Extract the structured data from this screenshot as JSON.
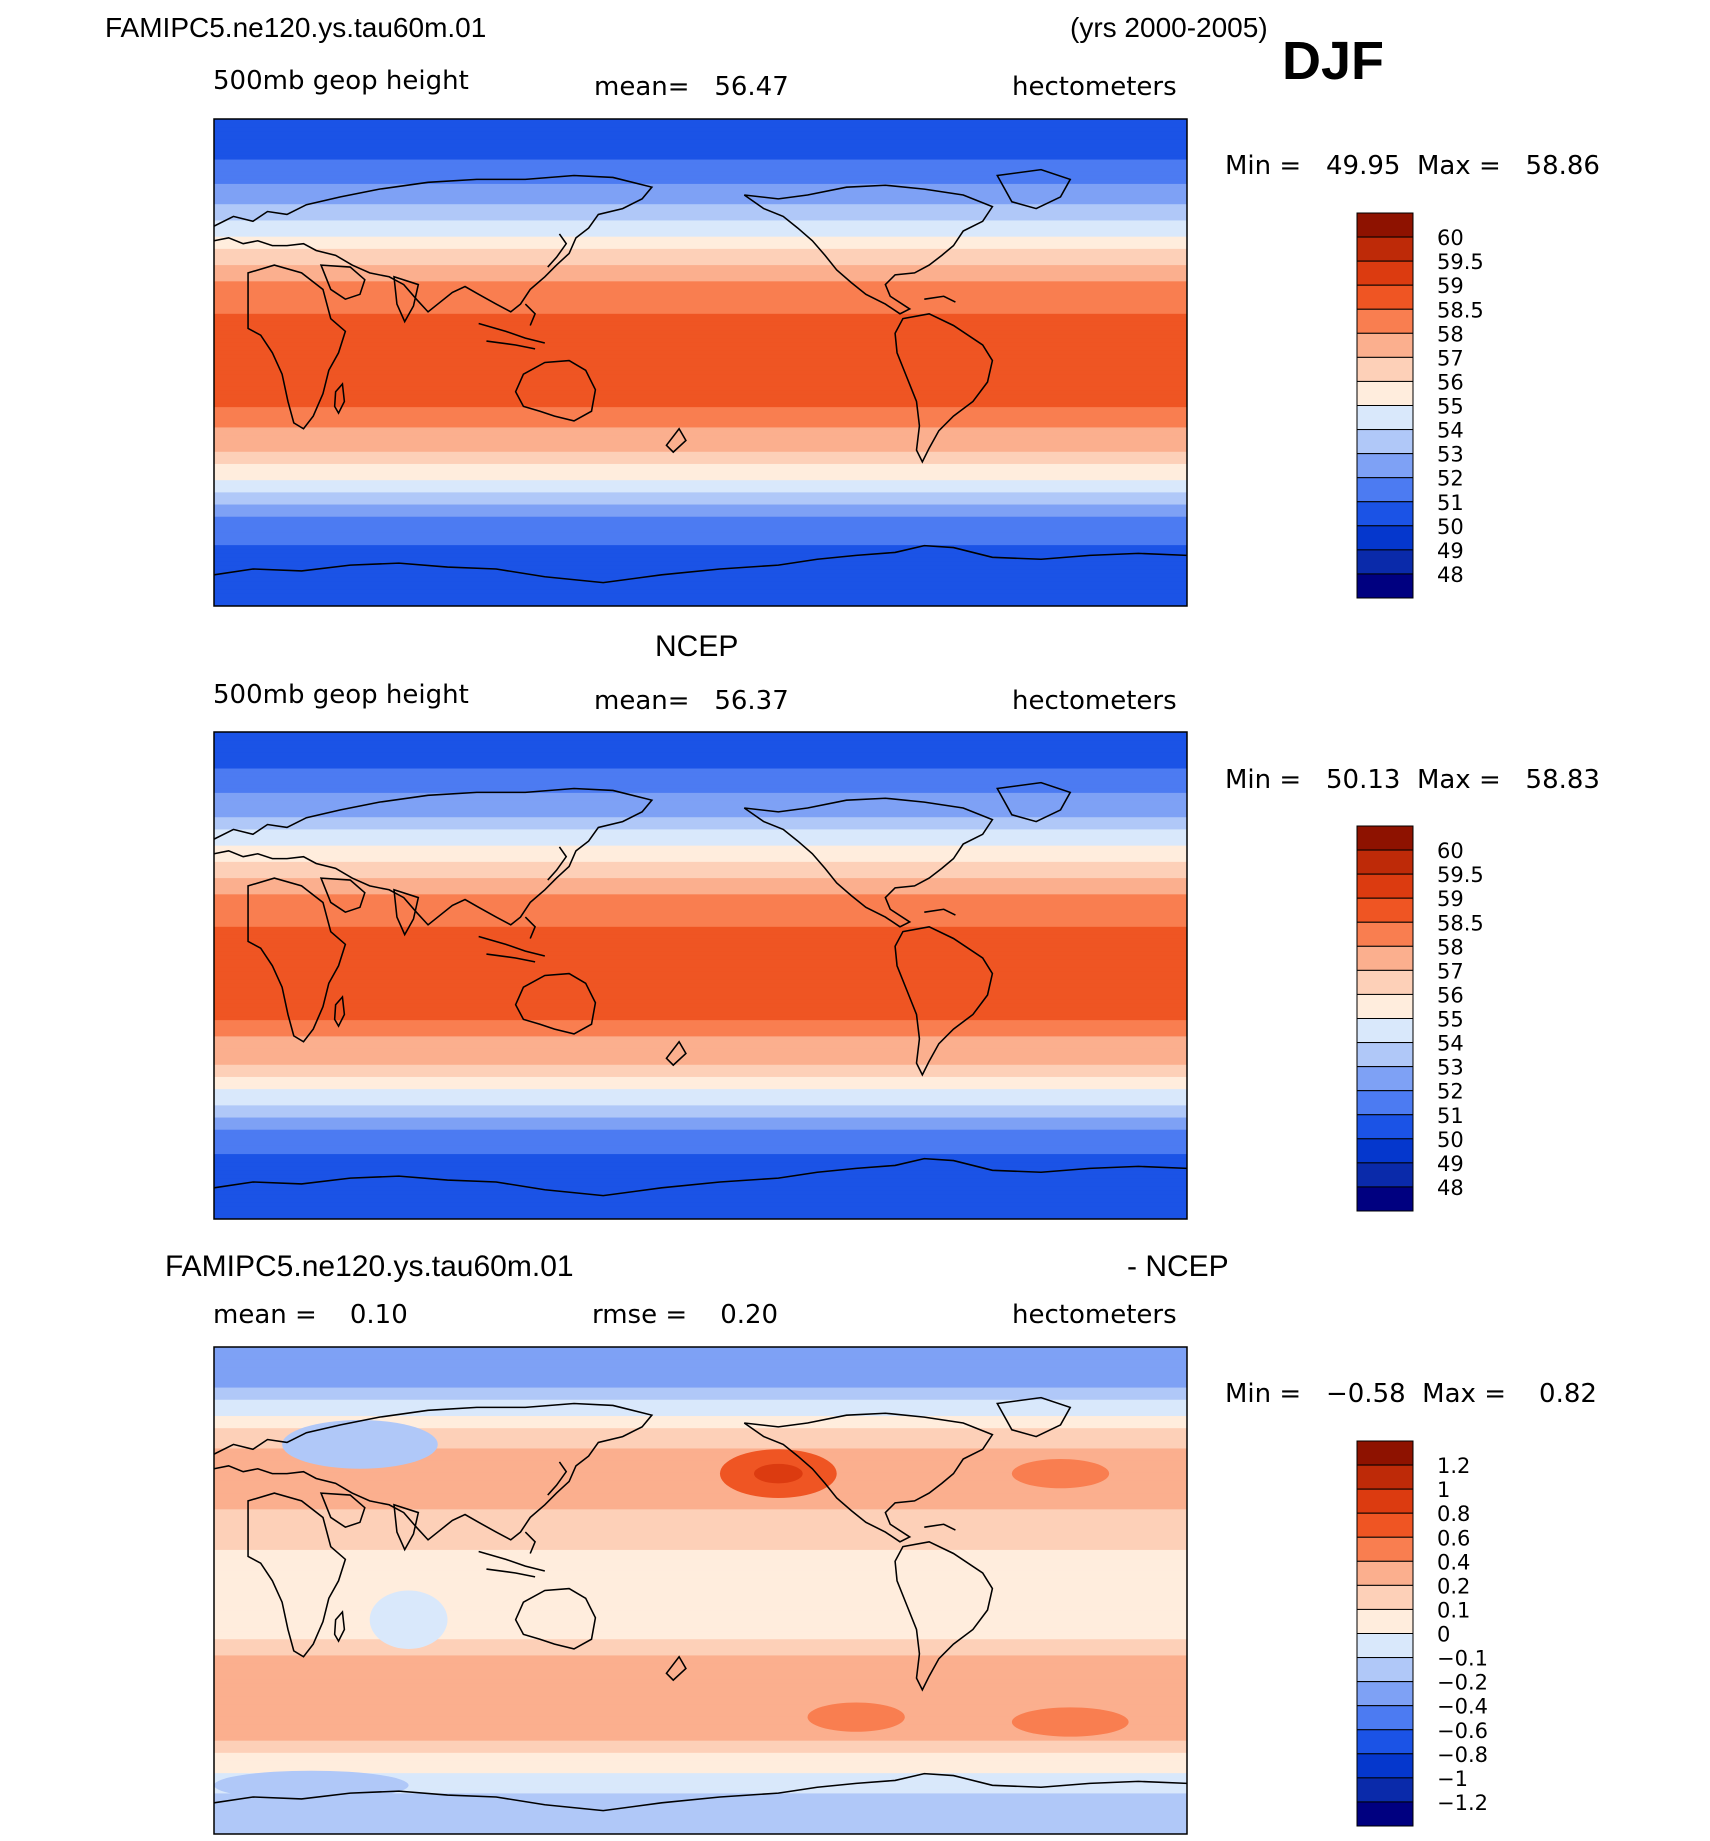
{
  "header": {
    "case_title": "FAMIPC5.ne120.ys.tau60m.01",
    "years": "(yrs 2000-2005)",
    "season": "DJF"
  },
  "colors": {
    "full_field": [
      "#000080",
      "#0A2AAA",
      "#0537CD",
      "#1B53E6",
      "#4C7BF2",
      "#7EA1F5",
      "#B0C8F8",
      "#D9E8FB",
      "#FFEDDD",
      "#FDD0B8",
      "#FBAF8E",
      "#F97E50",
      "#EF5523",
      "#DC3B10",
      "#BE2A08",
      "#8E1200"
    ],
    "difference": [
      "#000080",
      "#0A2AAA",
      "#0537CD",
      "#1B53E6",
      "#4C7BF2",
      "#7EA1F5",
      "#B0C8F8",
      "#D9E8FB",
      "#FFEDDD",
      "#FDD0B8",
      "#FBAF8E",
      "#F97E50",
      "#EF5523",
      "#DC3B10",
      "#BE2A08",
      "#8E1200"
    ]
  },
  "chart_data": [
    {
      "type": "heatmap",
      "name": "model",
      "title": "",
      "left_label": "500mb geop height",
      "center_label": "mean=   56.47",
      "right_label": "hectometers",
      "stats": "Min =   49.95  Max =   58.86",
      "levels": [
        "60",
        "59.5",
        "59",
        "58.5",
        "58",
        "57",
        "56",
        "55",
        "54",
        "53",
        "52",
        "51",
        "50",
        "49",
        "48"
      ],
      "projection": "cylindrical equidistant, centered 180",
      "zonal_profile": {
        "lat": [
          90,
          75,
          60,
          45,
          30,
          15,
          0,
          -15,
          -30,
          -45,
          -60,
          -75,
          -90
        ],
        "value": [
          50.2,
          51.0,
          52.6,
          55.4,
          58.0,
          58.6,
          58.7,
          58.6,
          57.6,
          54.6,
          51.4,
          50.6,
          50.3
        ]
      }
    },
    {
      "type": "heatmap",
      "name": "obs",
      "title": "NCEP",
      "left_label": "500mb geop height",
      "center_label": "mean=   56.37",
      "right_label": "hectometers",
      "stats": "Min =   50.13  Max =   58.83",
      "levels": [
        "60",
        "59.5",
        "59",
        "58.5",
        "58",
        "57",
        "56",
        "55",
        "54",
        "53",
        "52",
        "51",
        "50",
        "49",
        "48"
      ],
      "projection": "cylindrical equidistant, centered 180",
      "zonal_profile": {
        "lat": [
          90,
          75,
          60,
          45,
          30,
          15,
          0,
          -15,
          -30,
          -45,
          -60,
          -75,
          -90
        ],
        "value": [
          50.3,
          51.1,
          52.8,
          55.5,
          58.0,
          58.6,
          58.7,
          58.6,
          57.5,
          54.5,
          51.3,
          50.5,
          50.4
        ]
      }
    },
    {
      "type": "heatmap",
      "name": "difference",
      "title_left": "FAMIPC5.ne120.ys.tau60m.01",
      "title_right": "- NCEP",
      "left_label": "mean =    0.10",
      "center_label": "rmse =    0.20",
      "right_label": "hectometers",
      "stats": "Min =   −0.58  Max =    0.82",
      "levels": [
        "1.2",
        "1",
        "0.8",
        "0.6",
        "0.4",
        "0.2",
        "0.1",
        "0",
        "−0.1",
        "−0.2",
        "−0.4",
        "−0.6",
        "−0.8",
        "−1",
        "−1.2"
      ],
      "zonal_profile": {
        "lat": [
          90,
          75,
          60,
          45,
          30,
          15,
          0,
          -15,
          -30,
          -45,
          -60,
          -75,
          -90
        ],
        "value": [
          -0.3,
          -0.2,
          0.1,
          0.3,
          0.2,
          0.1,
          0.05,
          0.05,
          0.3,
          0.4,
          0.1,
          -0.1,
          -0.2
        ]
      }
    }
  ]
}
